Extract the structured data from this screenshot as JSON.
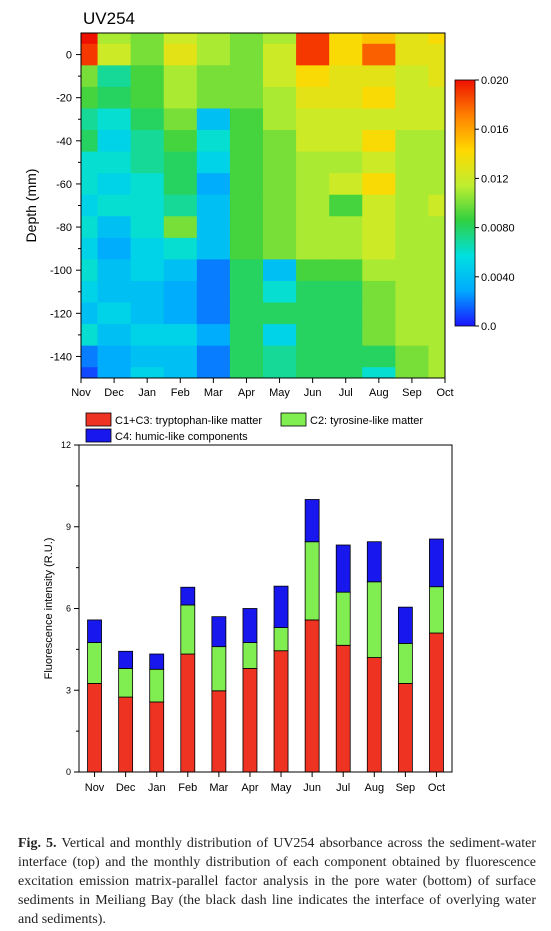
{
  "figure_caption": {
    "label": "Fig. 5.",
    "text": "Vertical and monthly distribution of UV254 absorbance across the sediment-water interface (top) and the monthly distribution of each component obtained by fluorescence excitation emission matrix-parallel factor analysis in the pore water (bottom) of surface sediments in Meiliang Bay (the black dash line indicates the interface of overlying water and sediments)."
  },
  "chart_data": [
    {
      "type": "heatmap",
      "title": "UV254",
      "xlabel": "",
      "ylabel": "Depth (mm)",
      "x": [
        "Nov",
        "Dec",
        "Jan",
        "Feb",
        "Mar",
        "Apr",
        "May",
        "Jun",
        "Jul",
        "Aug",
        "Sep",
        "Oct"
      ],
      "y_ticks": [
        0,
        -20,
        -40,
        -60,
        -80,
        -100,
        -120,
        -140
      ],
      "ylim": [
        -150,
        10
      ],
      "colorbar": {
        "min": 0.0,
        "max": 0.02,
        "tick_labels": [
          "0.020",
          "0.016",
          "0.012",
          "0.0080",
          "0.0040",
          "0.0"
        ],
        "colors": [
          "#1a14ff",
          "#00aaff",
          "#00e0e0",
          "#30d040",
          "#c0ee30",
          "#ffd800",
          "#ff8000",
          "#ee1100"
        ]
      },
      "depths": [
        10,
        0,
        -10,
        -20,
        -30,
        -40,
        -50,
        -60,
        -70,
        -80,
        -90,
        -100,
        -110,
        -120,
        -130,
        -140,
        -150
      ],
      "values": [
        [
          0.02,
          0.011,
          0.01,
          0.012,
          0.011,
          0.01,
          0.011,
          0.019,
          0.014,
          0.015,
          0.013,
          0.014
        ],
        [
          0.019,
          0.012,
          0.01,
          0.013,
          0.011,
          0.01,
          0.012,
          0.019,
          0.014,
          0.018,
          0.013,
          0.013
        ],
        [
          0.01,
          0.007,
          0.009,
          0.011,
          0.01,
          0.01,
          0.012,
          0.014,
          0.013,
          0.013,
          0.012,
          0.013
        ],
        [
          0.009,
          0.008,
          0.009,
          0.011,
          0.01,
          0.01,
          0.011,
          0.013,
          0.013,
          0.014,
          0.012,
          0.012
        ],
        [
          0.007,
          0.006,
          0.008,
          0.01,
          0.004,
          0.009,
          0.011,
          0.012,
          0.012,
          0.012,
          0.012,
          0.012
        ],
        [
          0.008,
          0.005,
          0.007,
          0.009,
          0.006,
          0.009,
          0.01,
          0.012,
          0.012,
          0.014,
          0.011,
          0.011
        ],
        [
          0.006,
          0.006,
          0.007,
          0.008,
          0.005,
          0.009,
          0.01,
          0.011,
          0.011,
          0.012,
          0.011,
          0.011
        ],
        [
          0.006,
          0.005,
          0.006,
          0.008,
          0.003,
          0.009,
          0.01,
          0.011,
          0.012,
          0.014,
          0.011,
          0.011
        ],
        [
          0.005,
          0.006,
          0.006,
          0.007,
          0.004,
          0.009,
          0.01,
          0.011,
          0.009,
          0.012,
          0.011,
          0.012
        ],
        [
          0.006,
          0.004,
          0.006,
          0.01,
          0.004,
          0.009,
          0.01,
          0.011,
          0.011,
          0.012,
          0.011,
          0.011
        ],
        [
          0.005,
          0.003,
          0.005,
          0.006,
          0.004,
          0.009,
          0.01,
          0.011,
          0.011,
          0.012,
          0.011,
          0.011
        ],
        [
          0.006,
          0.004,
          0.005,
          0.004,
          0.002,
          0.008,
          0.004,
          0.009,
          0.009,
          0.011,
          0.011,
          0.011
        ],
        [
          0.005,
          0.004,
          0.004,
          0.003,
          0.002,
          0.008,
          0.006,
          0.008,
          0.008,
          0.01,
          0.011,
          0.011
        ],
        [
          0.004,
          0.005,
          0.004,
          0.003,
          0.002,
          0.008,
          0.008,
          0.008,
          0.008,
          0.01,
          0.011,
          0.011
        ],
        [
          0.006,
          0.004,
          0.005,
          0.005,
          0.003,
          0.008,
          0.005,
          0.008,
          0.008,
          0.01,
          0.011,
          0.011
        ],
        [
          0.002,
          0.003,
          0.004,
          0.004,
          0.002,
          0.008,
          0.007,
          0.008,
          0.008,
          0.008,
          0.01,
          0.011
        ],
        [
          0.001,
          0.003,
          0.005,
          0.004,
          0.002,
          0.008,
          0.007,
          0.008,
          0.008,
          0.006,
          0.01,
          0.011
        ]
      ]
    },
    {
      "type": "bar",
      "stacked": true,
      "title": "",
      "xlabel": "",
      "ylabel": "Fluorescence intensity (R.U.)",
      "categories": [
        "Nov",
        "Dec",
        "Jan",
        "Feb",
        "Mar",
        "Apr",
        "May",
        "Jun",
        "Jul",
        "Aug",
        "Sep",
        "Oct"
      ],
      "ylim": [
        0,
        12
      ],
      "y_ticks": [
        0,
        3,
        6,
        9,
        12
      ],
      "legend_position": "top",
      "series": [
        {
          "name": "C1+C3: tryptophan-like matter",
          "color": "#ee3322",
          "values": [
            3.25,
            2.75,
            2.57,
            4.33,
            2.98,
            3.8,
            4.45,
            5.58,
            4.65,
            4.2,
            3.25,
            5.1
          ]
        },
        {
          "name": "C2: tyrosine-like matter",
          "color": "#80ee50",
          "values": [
            1.5,
            1.05,
            1.2,
            1.8,
            1.62,
            0.95,
            0.85,
            2.87,
            1.95,
            2.78,
            1.47,
            1.7
          ]
        },
        {
          "name": "C4: humic-like components",
          "color": "#1818ee",
          "values": [
            0.83,
            0.63,
            0.56,
            0.65,
            1.1,
            1.25,
            1.52,
            1.55,
            1.73,
            1.47,
            1.33,
            1.75
          ]
        }
      ]
    }
  ]
}
